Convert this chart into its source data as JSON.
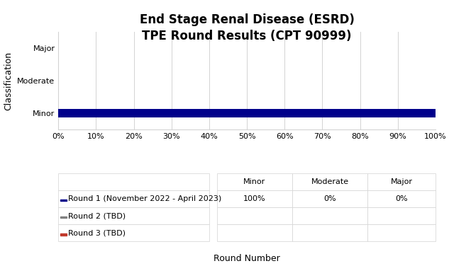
{
  "title_line1": "End Stage Renal Disease (ESRD)",
  "title_line2": "TPE Round Results (CPT 90999)",
  "categories": [
    "Minor",
    "Moderate",
    "Major"
  ],
  "round1_values": [
    1.0,
    0.0,
    0.0
  ],
  "bar_color_round1": "#00008B",
  "bar_color_round2": "#808080",
  "bar_color_round3": "#C0392B",
  "ylabel": "Classification",
  "xlabel": "Round Number",
  "xlim": [
    0,
    1.0
  ],
  "xtick_labels": [
    "0%",
    "10%",
    "20%",
    "30%",
    "40%",
    "50%",
    "60%",
    "70%",
    "80%",
    "90%",
    "100%"
  ],
  "xtick_values": [
    0.0,
    0.1,
    0.2,
    0.3,
    0.4,
    0.5,
    0.6,
    0.7,
    0.8,
    0.9,
    1.0
  ],
  "table_col_labels": [
    "",
    "Minor",
    "Moderate",
    "Major"
  ],
  "table_row_labels": [
    "Round 1 (November 2022 - April 2023)",
    "Round 2 (TBD)",
    "Round 3 (TBD)"
  ],
  "table_data": [
    [
      "100%",
      "0%",
      "0%"
    ],
    [
      "",
      "",
      ""
    ],
    [
      "",
      "",
      ""
    ]
  ],
  "table_row_colors": [
    "#00008B",
    "#808080",
    "#C0392B"
  ],
  "background_color": "#ffffff",
  "title_fontsize": 12,
  "axis_label_fontsize": 9,
  "tick_fontsize": 8,
  "table_fontsize": 8,
  "bar_height": 0.25
}
